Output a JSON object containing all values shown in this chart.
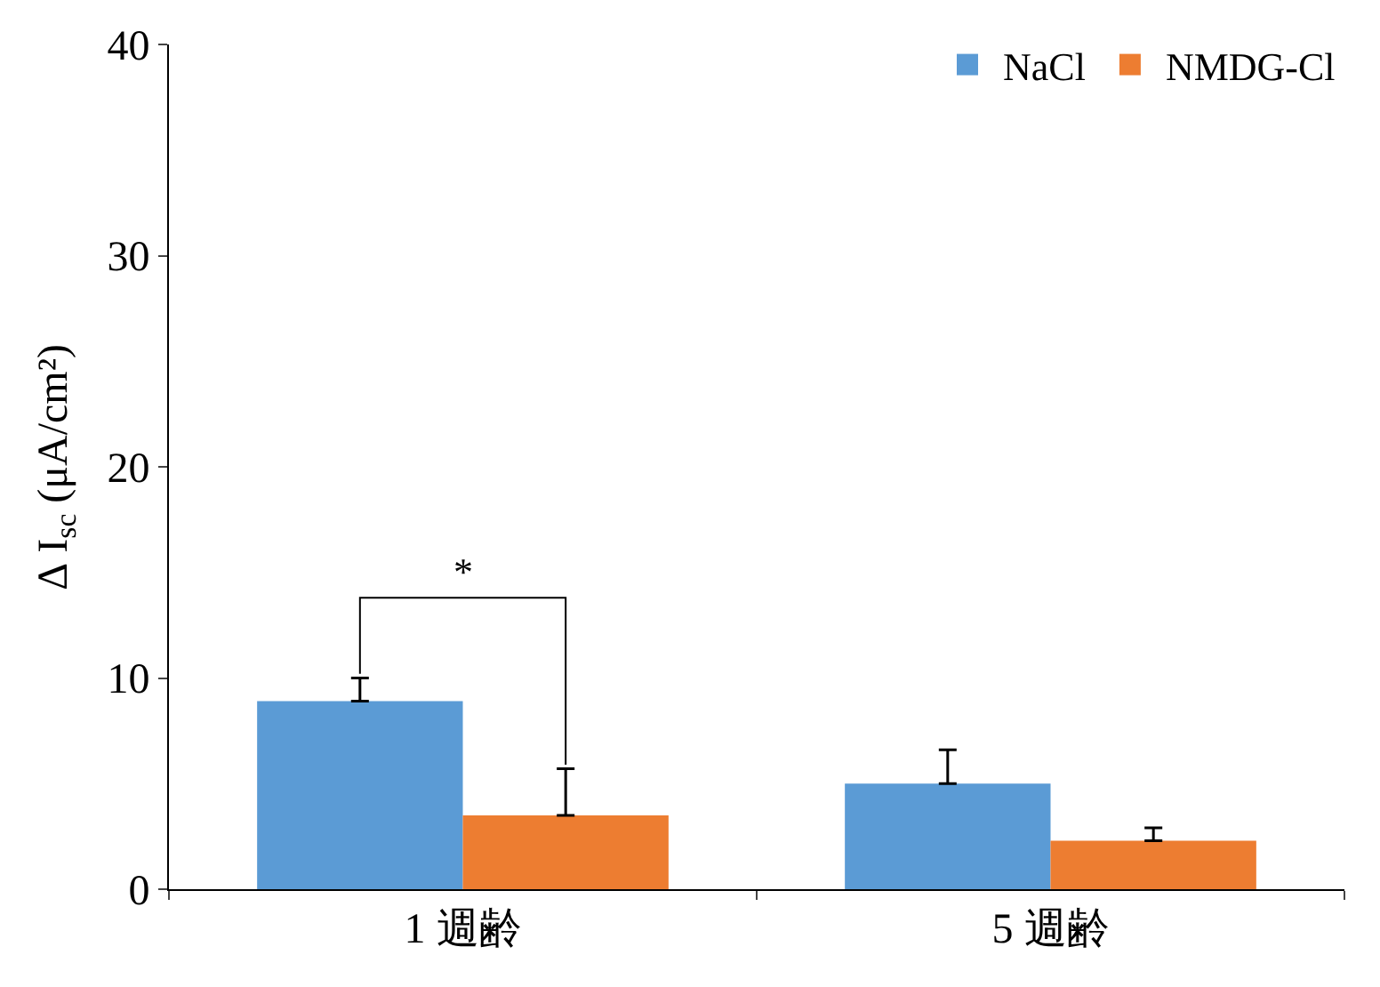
{
  "chart_data": {
    "type": "bar",
    "ylabel": "∆ I$_{sc}$ (μA/cm²)",
    "categories": [
      "1 週齢",
      "5 週齢"
    ],
    "series": [
      {
        "name": "NaCl",
        "color": "#5b9bd5",
        "values": [
          8.9,
          5.0
        ],
        "errors": [
          [
            8.9,
            10.0
          ],
          [
            5.0,
            6.6
          ]
        ]
      },
      {
        "name": "NMDG-Cl",
        "color": "#ed7d31",
        "values": [
          3.5,
          2.3
        ],
        "errors": [
          [
            3.5,
            5.7
          ],
          [
            2.3,
            2.9
          ]
        ]
      }
    ],
    "ylim": [
      0,
      40
    ],
    "yticks": [
      0,
      10,
      20,
      30,
      40
    ],
    "grid": false,
    "legend": "top right",
    "annotations": [
      "*"
    ]
  }
}
